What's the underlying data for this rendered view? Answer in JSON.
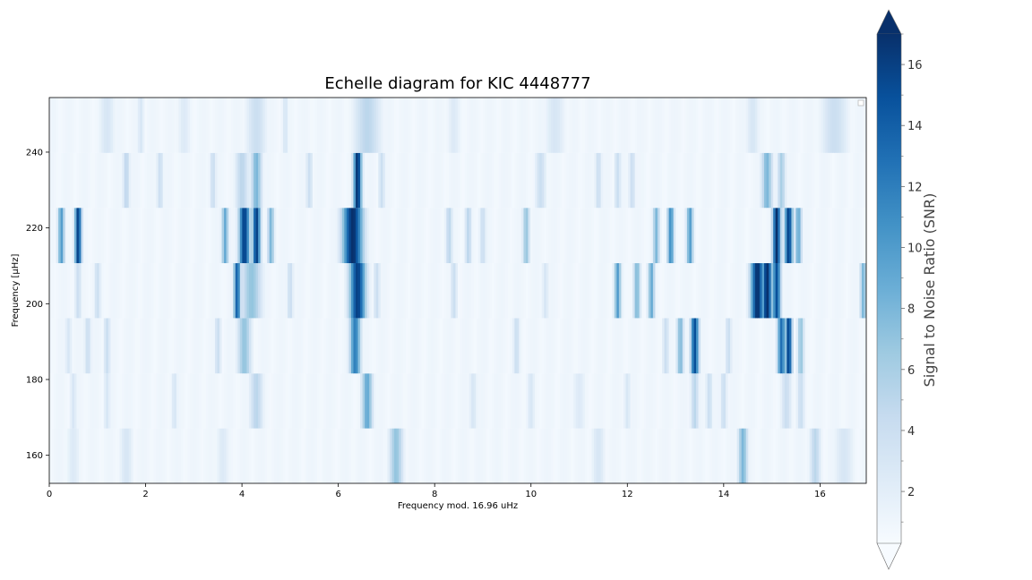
{
  "chart_data": {
    "type": "heatmap",
    "title": "Echelle diagram for KIC 4448777",
    "xlabel": "Frequency mod. 16.96 uHz",
    "ylabel": "Frequency [µHz]",
    "xlim": [
      0,
      16.96
    ],
    "ylim": [
      152.6,
      254.4
    ],
    "x_ticks": [
      0,
      2,
      4,
      6,
      8,
      10,
      12,
      14,
      16
    ],
    "x_tick_labels": [
      "0",
      "2",
      "4",
      "6",
      "8",
      "10",
      "12",
      "14",
      "16"
    ],
    "y_ticks": [
      160,
      180,
      200,
      220,
      240
    ],
    "y_tick_labels": [
      "160",
      "180",
      "200",
      "220",
      "240"
    ],
    "row_edges": [
      152.6,
      167.1,
      181.6,
      196.2,
      210.7,
      225.3,
      239.8,
      254.4
    ],
    "rows": [
      {
        "row": 0,
        "peaks": [
          [
            7.2,
            0.1,
            7
          ],
          [
            14.4,
            0.07,
            8
          ],
          [
            15.9,
            0.08,
            5
          ],
          [
            1.6,
            0.1,
            3
          ],
          [
            11.4,
            0.1,
            3
          ],
          [
            3.6,
            0.1,
            2.5
          ],
          [
            0.5,
            0.1,
            2.5
          ],
          [
            16.5,
            0.15,
            3
          ]
        ]
      },
      {
        "row": 1,
        "peaks": [
          [
            6.6,
            0.08,
            9
          ],
          [
            4.3,
            0.1,
            5
          ],
          [
            13.4,
            0.06,
            5
          ],
          [
            13.7,
            0.05,
            4
          ],
          [
            14.0,
            0.05,
            4
          ],
          [
            15.3,
            0.08,
            4
          ],
          [
            15.6,
            0.06,
            4
          ],
          [
            0.5,
            0.05,
            3
          ],
          [
            2.6,
            0.05,
            3
          ],
          [
            8.8,
            0.06,
            3
          ],
          [
            10.0,
            0.06,
            3
          ],
          [
            12.0,
            0.05,
            3
          ],
          [
            11.0,
            0.1,
            2.5
          ],
          [
            1.2,
            0.05,
            3
          ]
        ]
      },
      {
        "row": 2,
        "peaks": [
          [
            6.35,
            0.08,
            12
          ],
          [
            4.05,
            0.1,
            7
          ],
          [
            13.4,
            0.06,
            15
          ],
          [
            13.1,
            0.05,
            8
          ],
          [
            15.2,
            0.06,
            13
          ],
          [
            15.35,
            0.05,
            16
          ],
          [
            15.6,
            0.05,
            7
          ],
          [
            0.8,
            0.05,
            4
          ],
          [
            1.2,
            0.05,
            4
          ],
          [
            3.5,
            0.05,
            4
          ],
          [
            9.7,
            0.05,
            4
          ],
          [
            12.8,
            0.05,
            4
          ],
          [
            14.1,
            0.05,
            4
          ],
          [
            0.4,
            0.05,
            3
          ]
        ]
      },
      {
        "row": 3,
        "peaks": [
          [
            6.4,
            0.12,
            16
          ],
          [
            3.9,
            0.05,
            14
          ],
          [
            4.2,
            0.15,
            7
          ],
          [
            11.8,
            0.05,
            10
          ],
          [
            12.2,
            0.05,
            8
          ],
          [
            12.5,
            0.05,
            9
          ],
          [
            14.7,
            0.1,
            17
          ],
          [
            14.9,
            0.08,
            17
          ],
          [
            15.1,
            0.06,
            15
          ],
          [
            0.6,
            0.05,
            4
          ],
          [
            1.0,
            0.05,
            4
          ],
          [
            5.0,
            0.05,
            4
          ],
          [
            6.8,
            0.05,
            4
          ],
          [
            8.4,
            0.05,
            4
          ],
          [
            16.9,
            0.05,
            8
          ],
          [
            10.3,
            0.05,
            3
          ]
        ]
      },
      {
        "row": 4,
        "peaks": [
          [
            0.25,
            0.05,
            10
          ],
          [
            0.6,
            0.05,
            16
          ],
          [
            3.65,
            0.05,
            9
          ],
          [
            4.05,
            0.08,
            16
          ],
          [
            4.3,
            0.06,
            16
          ],
          [
            4.6,
            0.05,
            8
          ],
          [
            6.3,
            0.15,
            17
          ],
          [
            8.3,
            0.05,
            5
          ],
          [
            8.7,
            0.05,
            5
          ],
          [
            9.0,
            0.05,
            4
          ],
          [
            9.9,
            0.05,
            7
          ],
          [
            12.6,
            0.05,
            8
          ],
          [
            12.9,
            0.05,
            11
          ],
          [
            13.3,
            0.05,
            10
          ],
          [
            15.1,
            0.06,
            17
          ],
          [
            15.35,
            0.06,
            16
          ],
          [
            15.55,
            0.05,
            9
          ]
        ]
      },
      {
        "row": 5,
        "peaks": [
          [
            6.4,
            0.06,
            17
          ],
          [
            4.3,
            0.08,
            8
          ],
          [
            4.0,
            0.1,
            5
          ],
          [
            1.6,
            0.05,
            5
          ],
          [
            2.3,
            0.05,
            4
          ],
          [
            3.4,
            0.05,
            4
          ],
          [
            5.4,
            0.05,
            4
          ],
          [
            6.9,
            0.05,
            4
          ],
          [
            10.2,
            0.08,
            4
          ],
          [
            11.4,
            0.05,
            4
          ],
          [
            11.8,
            0.05,
            4
          ],
          [
            12.1,
            0.05,
            4
          ],
          [
            14.9,
            0.08,
            8
          ],
          [
            15.2,
            0.06,
            6
          ]
        ]
      },
      {
        "row": 6,
        "peaks": [
          [
            1.2,
            0.12,
            3
          ],
          [
            1.9,
            0.05,
            3
          ],
          [
            4.3,
            0.15,
            4
          ],
          [
            4.9,
            0.05,
            3
          ],
          [
            6.6,
            0.2,
            5
          ],
          [
            10.5,
            0.15,
            3
          ],
          [
            14.6,
            0.1,
            3
          ],
          [
            16.3,
            0.2,
            4
          ],
          [
            2.8,
            0.1,
            2.5
          ],
          [
            8.4,
            0.1,
            2.5
          ]
        ]
      }
    ],
    "colorbar": {
      "label": "Signal to Noise Ratio (SNR)",
      "colormap": "Blues",
      "vmin": 0.3,
      "vmax": 17,
      "ticks": [
        2,
        4,
        6,
        8,
        10,
        12,
        14,
        16
      ],
      "tick_labels": [
        "2",
        "4",
        "6",
        "8",
        "10",
        "12",
        "14",
        "16"
      ],
      "extend": "both"
    },
    "legend": {
      "placement": "top-right",
      "entries": []
    }
  }
}
